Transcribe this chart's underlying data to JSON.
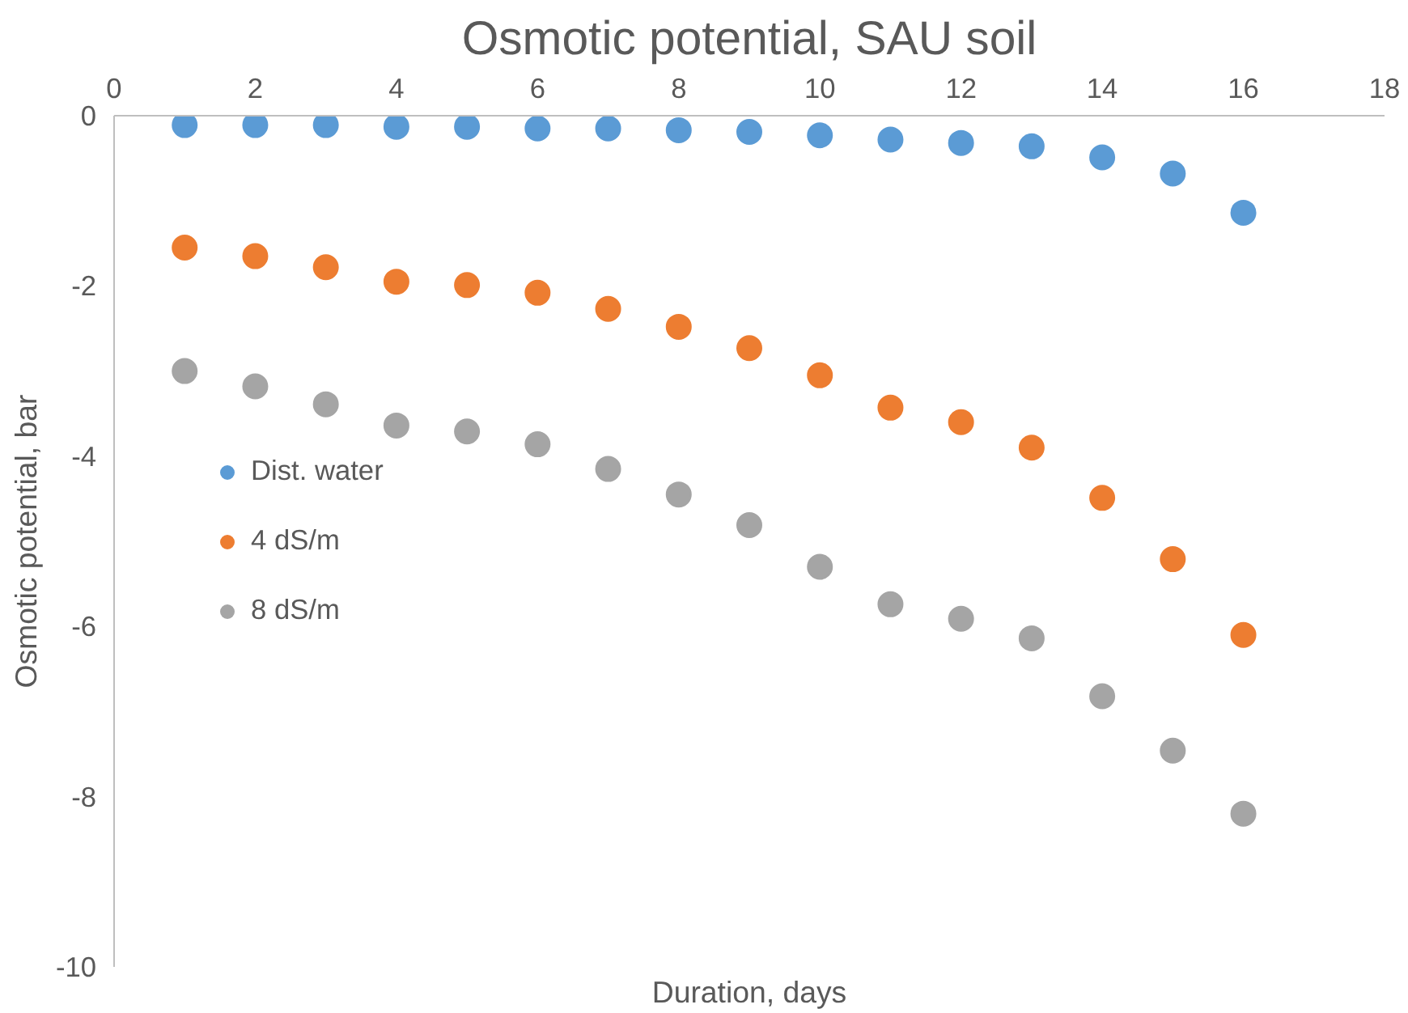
{
  "chart_data": {
    "type": "scatter",
    "title": "Osmotic potential, SAU soil",
    "xlabel": "Duration, days",
    "ylabel": "Osmotic potential, bar",
    "x": [
      1,
      2,
      3,
      4,
      5,
      6,
      7,
      8,
      9,
      10,
      11,
      12,
      13,
      14,
      15,
      16
    ],
    "xlim": [
      0,
      18
    ],
    "xticks": [
      0,
      2,
      4,
      6,
      8,
      10,
      12,
      14,
      16,
      18
    ],
    "ylim": [
      -10,
      0
    ],
    "yticks": [
      -10,
      -8,
      -6,
      -4,
      -2,
      0
    ],
    "marker": "circle",
    "legend": "left",
    "series": [
      {
        "name": "Dist. water",
        "color": "#5b9bd5",
        "values": [
          -0.11,
          -0.11,
          -0.11,
          -0.13,
          -0.13,
          -0.15,
          -0.15,
          -0.17,
          -0.19,
          -0.23,
          -0.28,
          -0.32,
          -0.36,
          -0.49,
          -0.68,
          -1.14
        ]
      },
      {
        "name": "4 dS/m",
        "color": "#ed7d31",
        "values": [
          -1.55,
          -1.65,
          -1.78,
          -1.95,
          -1.99,
          -2.08,
          -2.27,
          -2.48,
          -2.73,
          -3.05,
          -3.43,
          -3.6,
          -3.9,
          -4.49,
          -5.21,
          -6.1
        ]
      },
      {
        "name": "8 dS/m",
        "color": "#a5a5a5",
        "values": [
          -3.0,
          -3.18,
          -3.39,
          -3.64,
          -3.71,
          -3.86,
          -4.15,
          -4.45,
          -4.81,
          -5.3,
          -5.74,
          -5.91,
          -6.14,
          -6.82,
          -7.46,
          -8.2
        ]
      }
    ]
  }
}
